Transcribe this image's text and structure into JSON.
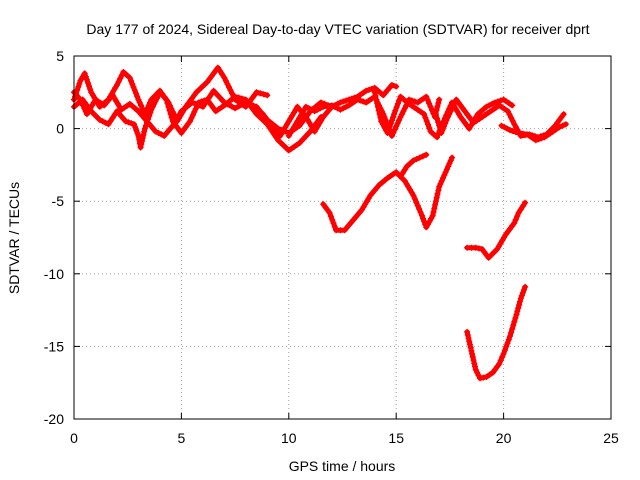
{
  "chart_data": {
    "type": "scatter",
    "title": "Day 177 of 2024, Sidereal Day-to-day VTEC variation (SDTVAR) for receiver dprt",
    "xlabel": "GPS time / hours",
    "ylabel": "SDTVAR / TECUs",
    "xlim": [
      0,
      25
    ],
    "ylim": [
      -20,
      5
    ],
    "xticks": [
      "0",
      "5",
      "10",
      "15",
      "20",
      "25"
    ],
    "yticks": [
      "5",
      "0",
      "-5",
      "-10",
      "-15",
      "-20"
    ],
    "grid": true,
    "marker": "plus",
    "color": "#ff0000",
    "series": [
      {
        "name": "s1",
        "points": [
          [
            0.0,
            2.0
          ],
          [
            0.3,
            3.3
          ],
          [
            0.5,
            3.8
          ],
          [
            0.8,
            2.5
          ],
          [
            1.2,
            1.5
          ],
          [
            1.6,
            2.0
          ],
          [
            2.0,
            3.0
          ],
          [
            2.3,
            3.9
          ],
          [
            2.6,
            3.5
          ],
          [
            3.0,
            2.0
          ],
          [
            3.3,
            1.0
          ],
          [
            3.6,
            2.0
          ],
          [
            4.0,
            2.6
          ],
          [
            4.4,
            1.8
          ],
          [
            4.8,
            0.5
          ],
          [
            5.2,
            1.5
          ],
          [
            5.7,
            2.5
          ],
          [
            6.2,
            3.2
          ],
          [
            6.7,
            4.2
          ],
          [
            7.0,
            3.5
          ],
          [
            7.5,
            2.0
          ],
          [
            8.0,
            1.5
          ],
          [
            8.5,
            2.5
          ],
          [
            9.0,
            2.3
          ]
        ]
      },
      {
        "name": "s2",
        "points": [
          [
            0.0,
            1.5
          ],
          [
            0.4,
            2.0
          ],
          [
            0.8,
            1.2
          ],
          [
            1.2,
            0.6
          ],
          [
            1.6,
            0.3
          ],
          [
            2.0,
            1.2
          ],
          [
            2.4,
            0.5
          ],
          [
            2.8,
            0.3
          ],
          [
            3.0,
            -0.5
          ],
          [
            3.1,
            -1.3
          ],
          [
            3.3,
            0.0
          ],
          [
            3.6,
            1.3
          ],
          [
            4.0,
            2.5
          ],
          [
            4.3,
            2.0
          ],
          [
            4.6,
            0.5
          ],
          [
            5.0,
            -0.3
          ],
          [
            5.4,
            0.5
          ],
          [
            5.8,
            1.8
          ],
          [
            6.2,
            2.0
          ],
          [
            6.6,
            1.2
          ],
          [
            7.0,
            1.6
          ],
          [
            7.5,
            2.2
          ],
          [
            8.0,
            2.0
          ],
          [
            8.5,
            1.0
          ],
          [
            9.0,
            0.3
          ],
          [
            9.5,
            -0.8
          ],
          [
            10.0,
            -1.5
          ],
          [
            10.5,
            -1.0
          ],
          [
            11.0,
            -0.2
          ],
          [
            11.5,
            0.8
          ]
        ]
      },
      {
        "name": "s3",
        "points": [
          [
            0.0,
            2.5
          ],
          [
            0.3,
            2.0
          ],
          [
            0.6,
            1.0
          ],
          [
            1.0,
            2.0
          ],
          [
            1.4,
            1.6
          ],
          [
            1.8,
            2.3
          ],
          [
            2.2,
            1.3
          ],
          [
            2.6,
            1.7
          ],
          [
            3.0,
            1.2
          ],
          [
            3.4,
            0.5
          ],
          [
            3.8,
            -0.2
          ],
          [
            4.2,
            -0.5
          ],
          [
            4.6,
            0.2
          ],
          [
            5.0,
            1.2
          ],
          [
            5.5,
            1.8
          ],
          [
            6.0,
            1.5
          ],
          [
            6.5,
            2.6
          ],
          [
            7.0,
            1.8
          ],
          [
            7.5,
            1.4
          ],
          [
            8.0,
            1.8
          ],
          [
            8.5,
            1.5
          ],
          [
            9.0,
            0.6
          ],
          [
            9.5,
            0.0
          ],
          [
            10.0,
            -0.3
          ],
          [
            10.5,
            0.2
          ],
          [
            11.0,
            1.2
          ],
          [
            11.5,
            1.8
          ],
          [
            12.0,
            1.5
          ]
        ]
      },
      {
        "name": "s4",
        "points": [
          [
            8.8,
            1.0
          ],
          [
            9.2,
            0.2
          ],
          [
            9.6,
            -0.5
          ],
          [
            10.0,
            0.5
          ],
          [
            10.4,
            1.5
          ],
          [
            10.8,
            0.8
          ],
          [
            11.2,
            -0.2
          ],
          [
            11.6,
            0.8
          ],
          [
            12.0,
            1.5
          ],
          [
            12.4,
            1.8
          ],
          [
            12.8,
            2.0
          ],
          [
            13.2,
            2.2
          ],
          [
            13.6,
            2.6
          ],
          [
            14.0,
            2.8
          ],
          [
            14.4,
            2.3
          ],
          [
            14.8,
            3.0
          ],
          [
            15.0,
            2.9
          ]
        ]
      },
      {
        "name": "s5",
        "points": [
          [
            10.0,
            -0.5
          ],
          [
            10.4,
            0.5
          ],
          [
            10.8,
            1.5
          ],
          [
            11.2,
            1.2
          ],
          [
            11.6,
            1.5
          ],
          [
            12.0,
            1.6
          ],
          [
            12.4,
            1.3
          ],
          [
            12.8,
            1.6
          ],
          [
            13.2,
            2.0
          ],
          [
            13.6,
            1.8
          ],
          [
            14.0,
            2.2
          ],
          [
            14.4,
            1.0
          ],
          [
            14.8,
            -0.5
          ],
          [
            15.2,
            0.8
          ],
          [
            15.6,
            2.0
          ],
          [
            16.0,
            1.8
          ],
          [
            16.4,
            2.2
          ],
          [
            16.8,
            0.8
          ],
          [
            17.0,
            2.0
          ]
        ]
      },
      {
        "name": "s6",
        "points": [
          [
            14.0,
            2.5
          ],
          [
            14.3,
            0.5
          ],
          [
            14.6,
            -0.3
          ],
          [
            14.9,
            1.0
          ],
          [
            15.2,
            2.2
          ],
          [
            15.6,
            1.7
          ],
          [
            16.0,
            1.3
          ],
          [
            16.3,
            1.0
          ],
          [
            16.6,
            -0.2
          ],
          [
            16.9,
            -0.6
          ],
          [
            17.2,
            0.5
          ],
          [
            17.6,
            1.8
          ],
          [
            18.0,
            0.8
          ],
          [
            18.4,
            0.0
          ],
          [
            18.8,
            1.0
          ],
          [
            19.2,
            1.5
          ],
          [
            19.6,
            1.8
          ],
          [
            20.0,
            2.0
          ],
          [
            20.4,
            1.6
          ]
        ]
      },
      {
        "name": "s7",
        "points": [
          [
            16.8,
            1.2
          ],
          [
            17.1,
            -0.3
          ],
          [
            17.4,
            0.8
          ],
          [
            17.8,
            2.0
          ],
          [
            18.2,
            1.2
          ],
          [
            18.6,
            0.4
          ],
          [
            19.0,
            0.8
          ],
          [
            19.4,
            1.2
          ],
          [
            19.8,
            1.6
          ],
          [
            20.2,
            1.2
          ],
          [
            20.5,
            0.3
          ],
          [
            20.8,
            -0.5
          ],
          [
            21.2,
            -0.4
          ],
          [
            21.6,
            -0.6
          ],
          [
            22.0,
            -0.4
          ],
          [
            22.4,
            0.2
          ],
          [
            22.8,
            1.0
          ]
        ]
      },
      {
        "name": "s8",
        "points": [
          [
            19.9,
            0.2
          ],
          [
            20.3,
            -0.1
          ],
          [
            20.7,
            -0.3
          ],
          [
            21.1,
            -0.4
          ],
          [
            21.5,
            -0.8
          ],
          [
            21.9,
            -0.6
          ],
          [
            22.3,
            -0.2
          ],
          [
            22.6,
            0.1
          ],
          [
            22.9,
            0.3
          ]
        ]
      },
      {
        "name": "s9",
        "points": [
          [
            11.6,
            -5.2
          ],
          [
            11.9,
            -5.8
          ],
          [
            12.2,
            -7.0
          ],
          [
            12.6,
            -7.0
          ],
          [
            13.0,
            -6.3
          ],
          [
            13.4,
            -5.6
          ],
          [
            13.8,
            -4.6
          ],
          [
            14.2,
            -3.9
          ],
          [
            14.6,
            -3.4
          ],
          [
            15.0,
            -3.0
          ],
          [
            15.4,
            -3.6
          ],
          [
            15.8,
            -4.6
          ],
          [
            16.2,
            -6.0
          ],
          [
            16.4,
            -6.8
          ],
          [
            16.7,
            -6.0
          ],
          [
            17.0,
            -4.0
          ],
          [
            17.3,
            -3.0
          ],
          [
            17.6,
            -2.0
          ]
        ]
      },
      {
        "name": "s10",
        "points": [
          [
            15.2,
            -3.3
          ],
          [
            15.5,
            -2.6
          ],
          [
            15.8,
            -2.2
          ],
          [
            16.1,
            -2.0
          ],
          [
            16.4,
            -1.8
          ]
        ]
      },
      {
        "name": "s11",
        "points": [
          [
            18.3,
            -8.2
          ],
          [
            18.7,
            -8.2
          ],
          [
            19.0,
            -8.3
          ],
          [
            19.3,
            -8.9
          ],
          [
            19.7,
            -8.3
          ],
          [
            20.1,
            -7.3
          ],
          [
            20.5,
            -6.5
          ],
          [
            20.7,
            -5.8
          ],
          [
            21.0,
            -5.1
          ]
        ]
      },
      {
        "name": "s12",
        "points": [
          [
            18.3,
            -14.0
          ],
          [
            18.5,
            -15.3
          ],
          [
            18.7,
            -16.6
          ],
          [
            18.9,
            -17.2
          ],
          [
            19.2,
            -17.1
          ],
          [
            19.5,
            -16.8
          ],
          [
            19.8,
            -16.2
          ],
          [
            20.0,
            -15.5
          ],
          [
            20.3,
            -14.3
          ],
          [
            20.6,
            -12.8
          ],
          [
            20.8,
            -11.7
          ],
          [
            21.0,
            -10.9
          ]
        ]
      }
    ]
  }
}
